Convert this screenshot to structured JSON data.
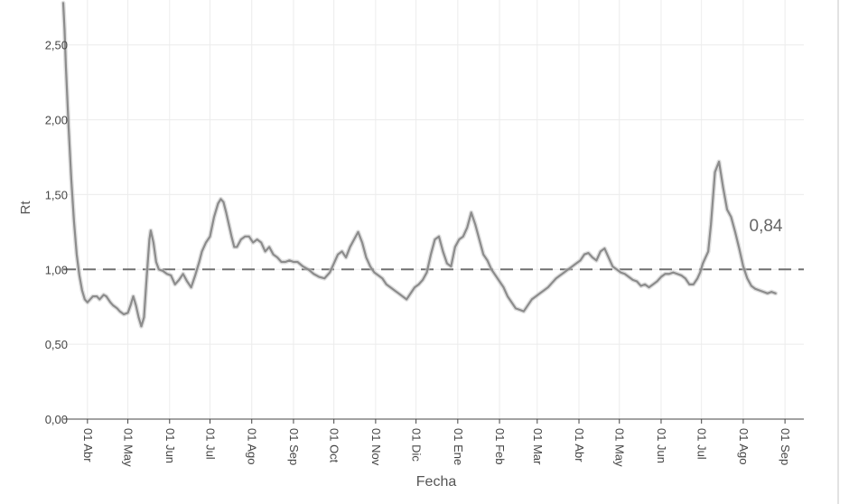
{
  "chart_data": {
    "type": "line",
    "xlabel": "Fecha",
    "ylabel": "Rt",
    "ylim": [
      0,
      2.8
    ],
    "y_ticks": [
      {
        "value": 0,
        "label": "0,00"
      },
      {
        "value": 0.5,
        "label": "0,50"
      },
      {
        "value": 1,
        "label": "1,00"
      },
      {
        "value": 1.5,
        "label": "1,50"
      },
      {
        "value": 2,
        "label": "2,00"
      },
      {
        "value": 2.5,
        "label": "2,50"
      }
    ],
    "x_range": [
      "2020-03-14",
      "2021-09-15"
    ],
    "x_ticks": [
      {
        "date": "2020-04-01",
        "label": "01 Abr"
      },
      {
        "date": "2020-05-01",
        "label": "01 May"
      },
      {
        "date": "2020-06-01",
        "label": "01 Jun"
      },
      {
        "date": "2020-07-01",
        "label": "01 Jul"
      },
      {
        "date": "2020-08-01",
        "label": "01 Ago"
      },
      {
        "date": "2020-09-01",
        "label": "01 Sep"
      },
      {
        "date": "2020-10-01",
        "label": "01 Oct"
      },
      {
        "date": "2020-11-01",
        "label": "01 Nov"
      },
      {
        "date": "2020-12-01",
        "label": "01 Dic"
      },
      {
        "date": "2021-01-01",
        "label": "01 Ene"
      },
      {
        "date": "2021-02-01",
        "label": "01 Feb"
      },
      {
        "date": "2021-03-01",
        "label": "01 Mar"
      },
      {
        "date": "2021-04-01",
        "label": "01 Abr"
      },
      {
        "date": "2021-05-01",
        "label": "01 May"
      },
      {
        "date": "2021-06-01",
        "label": "01 Jun"
      },
      {
        "date": "2021-07-01",
        "label": "01 Jul"
      },
      {
        "date": "2021-08-01",
        "label": "01 Ago"
      },
      {
        "date": "2021-09-01",
        "label": "01 Sep"
      }
    ],
    "grid": true,
    "reference_line": {
      "value": 1.0,
      "style": "dashed"
    },
    "last_value_label": "0,84",
    "colors": {
      "line": "#8c8c8c",
      "band": "#c4c4c4",
      "reference": "#707070",
      "grid": "#ececec",
      "axis": "#444444"
    },
    "series": [
      {
        "x": [
          "2020-03-14",
          "2020-03-15",
          "2020-03-16",
          "2020-03-18",
          "2020-03-20",
          "2020-03-22",
          "2020-03-24",
          "2020-03-26",
          "2020-03-28",
          "2020-03-30",
          "2020-04-01",
          "2020-04-03",
          "2020-04-05",
          "2020-04-08",
          "2020-04-10",
          "2020-04-13",
          "2020-04-15",
          "2020-04-18",
          "2020-04-20",
          "2020-04-23",
          "2020-04-25",
          "2020-04-28",
          "2020-05-01",
          "2020-05-03",
          "2020-05-05",
          "2020-05-07",
          "2020-05-09",
          "2020-05-11",
          "2020-05-13",
          "2020-05-15",
          "2020-05-17",
          "2020-05-18",
          "2020-05-20",
          "2020-05-22",
          "2020-05-24",
          "2020-05-27",
          "2020-05-30",
          "2020-06-02",
          "2020-06-05",
          "2020-06-08",
          "2020-06-11",
          "2020-06-14",
          "2020-06-17",
          "2020-06-20",
          "2020-06-23",
          "2020-06-25",
          "2020-06-28",
          "2020-07-01",
          "2020-07-04",
          "2020-07-07",
          "2020-07-09",
          "2020-07-11",
          "2020-07-13",
          "2020-07-15",
          "2020-07-17",
          "2020-07-19",
          "2020-07-21",
          "2020-07-24",
          "2020-07-27",
          "2020-07-30",
          "2020-08-02",
          "2020-08-05",
          "2020-08-08",
          "2020-08-11",
          "2020-08-14",
          "2020-08-17",
          "2020-08-20",
          "2020-08-23",
          "2020-08-26",
          "2020-08-29",
          "2020-09-01",
          "2020-09-04",
          "2020-09-08",
          "2020-09-12",
          "2020-09-16",
          "2020-09-20",
          "2020-09-24",
          "2020-09-28",
          "2020-10-01",
          "2020-10-04",
          "2020-10-07",
          "2020-10-10",
          "2020-10-13",
          "2020-10-16",
          "2020-10-19",
          "2020-10-22",
          "2020-10-25",
          "2020-10-28",
          "2020-10-31",
          "2020-11-03",
          "2020-11-06",
          "2020-11-09",
          "2020-11-12",
          "2020-11-15",
          "2020-11-18",
          "2020-11-21",
          "2020-11-24",
          "2020-11-27",
          "2020-11-30",
          "2020-12-03",
          "2020-12-06",
          "2020-12-09",
          "2020-12-12",
          "2020-12-15",
          "2020-12-18",
          "2020-12-21",
          "2020-12-24",
          "2020-12-27",
          "2020-12-30",
          "2021-01-02",
          "2021-01-05",
          "2021-01-08",
          "2021-01-11",
          "2021-01-14",
          "2021-01-17",
          "2021-01-20",
          "2021-01-23",
          "2021-01-26",
          "2021-01-29",
          "2021-02-01",
          "2021-02-04",
          "2021-02-07",
          "2021-02-10",
          "2021-02-13",
          "2021-02-16",
          "2021-02-19",
          "2021-02-22",
          "2021-02-25",
          "2021-02-28",
          "2021-03-03",
          "2021-03-06",
          "2021-03-09",
          "2021-03-12",
          "2021-03-15",
          "2021-03-18",
          "2021-03-21",
          "2021-03-24",
          "2021-03-27",
          "2021-03-30",
          "2021-04-02",
          "2021-04-05",
          "2021-04-08",
          "2021-04-11",
          "2021-04-14",
          "2021-04-17",
          "2021-04-20",
          "2021-04-23",
          "2021-04-26",
          "2021-04-29",
          "2021-05-02",
          "2021-05-05",
          "2021-05-08",
          "2021-05-11",
          "2021-05-14",
          "2021-05-17",
          "2021-05-20",
          "2021-05-23",
          "2021-05-26",
          "2021-05-29",
          "2021-06-01",
          "2021-06-04",
          "2021-06-07",
          "2021-06-10",
          "2021-06-13",
          "2021-06-16",
          "2021-06-19",
          "2021-06-22",
          "2021-06-25",
          "2021-06-28",
          "2021-06-30",
          "2021-07-02",
          "2021-07-04",
          "2021-07-06",
          "2021-07-08",
          "2021-07-11",
          "2021-07-14",
          "2021-07-17",
          "2021-07-20",
          "2021-07-23",
          "2021-07-26",
          "2021-07-29",
          "2021-08-01",
          "2021-08-04",
          "2021-08-07",
          "2021-08-10",
          "2021-08-13",
          "2021-08-16",
          "2021-08-19",
          "2021-08-22",
          "2021-08-25"
        ],
        "y": [
          2.78,
          2.6,
          2.35,
          1.95,
          1.6,
          1.32,
          1.1,
          0.96,
          0.86,
          0.8,
          0.78,
          0.8,
          0.82,
          0.82,
          0.8,
          0.83,
          0.82,
          0.78,
          0.76,
          0.74,
          0.72,
          0.7,
          0.71,
          0.76,
          0.82,
          0.76,
          0.68,
          0.62,
          0.68,
          0.95,
          1.2,
          1.26,
          1.18,
          1.05,
          1.0,
          0.99,
          0.97,
          0.96,
          0.9,
          0.93,
          0.97,
          0.92,
          0.88,
          0.96,
          1.05,
          1.12,
          1.18,
          1.22,
          1.35,
          1.44,
          1.47,
          1.45,
          1.38,
          1.3,
          1.22,
          1.15,
          1.15,
          1.2,
          1.22,
          1.22,
          1.18,
          1.2,
          1.18,
          1.12,
          1.15,
          1.1,
          1.08,
          1.05,
          1.05,
          1.06,
          1.05,
          1.05,
          1.02,
          1.0,
          0.97,
          0.95,
          0.94,
          0.98,
          1.04,
          1.1,
          1.12,
          1.08,
          1.15,
          1.2,
          1.25,
          1.18,
          1.08,
          1.02,
          0.98,
          0.96,
          0.94,
          0.9,
          0.88,
          0.86,
          0.84,
          0.82,
          0.8,
          0.84,
          0.88,
          0.9,
          0.93,
          0.98,
          1.1,
          1.2,
          1.22,
          1.12,
          1.04,
          1.02,
          1.15,
          1.2,
          1.22,
          1.28,
          1.38,
          1.3,
          1.2,
          1.1,
          1.06,
          1.0,
          0.96,
          0.92,
          0.88,
          0.82,
          0.78,
          0.74,
          0.73,
          0.72,
          0.76,
          0.8,
          0.82,
          0.84,
          0.86,
          0.88,
          0.91,
          0.94,
          0.96,
          0.98,
          1.0,
          1.02,
          1.04,
          1.06,
          1.1,
          1.11,
          1.08,
          1.06,
          1.12,
          1.14,
          1.08,
          1.02,
          1.0,
          0.98,
          0.97,
          0.95,
          0.93,
          0.92,
          0.89,
          0.9,
          0.88,
          0.9,
          0.92,
          0.95,
          0.97,
          0.97,
          0.98,
          0.97,
          0.96,
          0.94,
          0.9,
          0.9,
          0.94,
          0.98,
          1.04,
          1.08,
          1.12,
          1.3,
          1.65,
          1.72,
          1.55,
          1.4,
          1.35,
          1.25,
          1.14,
          1.02,
          0.94,
          0.89,
          0.87,
          0.86,
          0.85,
          0.84,
          0.85,
          0.84
        ]
      }
    ]
  }
}
